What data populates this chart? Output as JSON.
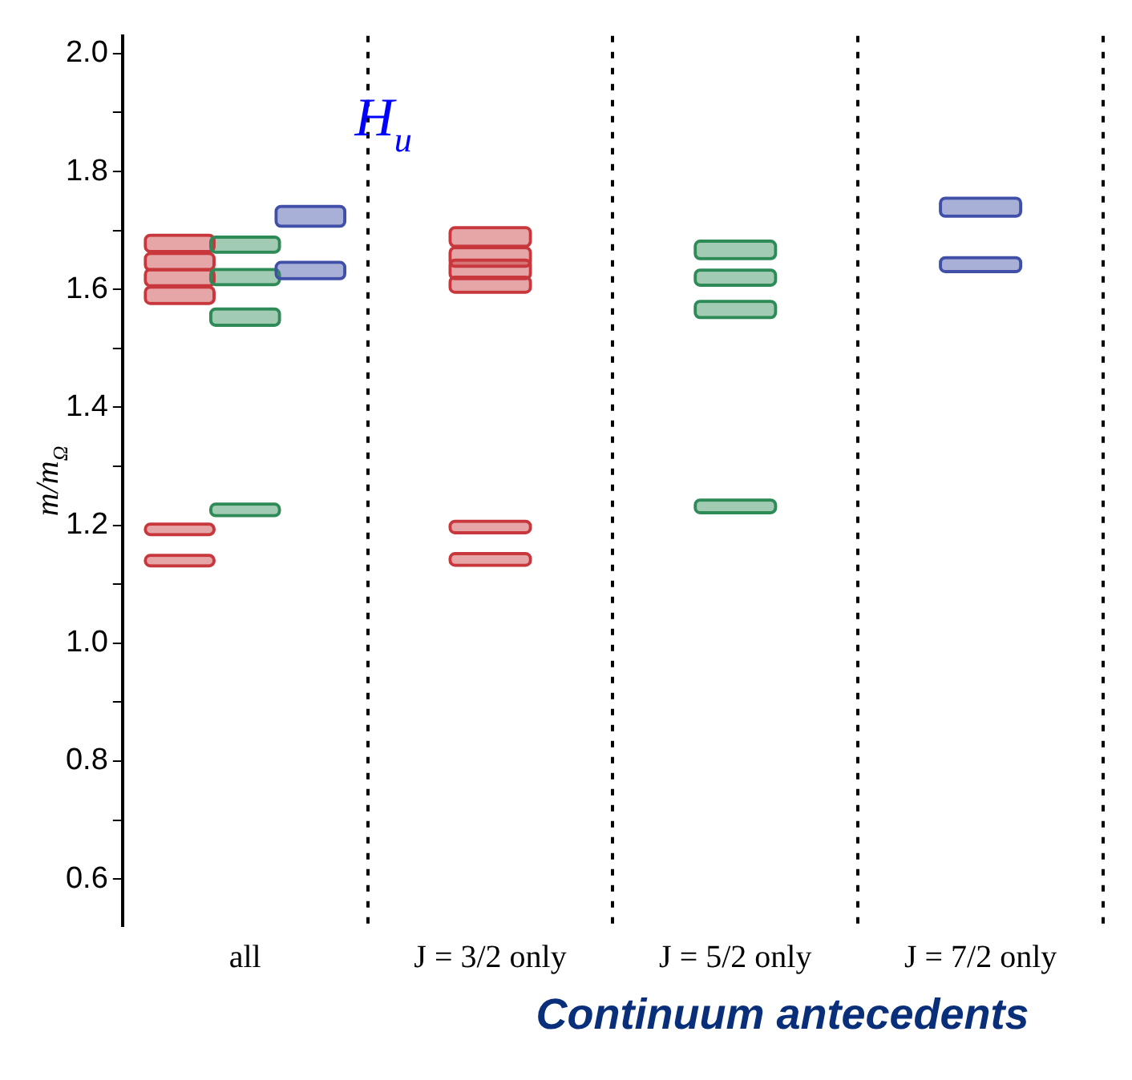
{
  "chart_data": {
    "type": "bar",
    "xlabel": "Continuum antecedents",
    "ylabel": "m/m$_{Ω}$",
    "annotations": [
      "H$_{u}$"
    ],
    "categories": [
      "all",
      "J = 3/2 only",
      "J = 5/2 only",
      "J = 7/2 only"
    ],
    "ylim": [
      0.52,
      2.03
    ],
    "yticks": [
      {
        "value": 0.6,
        "label": "0.6"
      },
      {
        "value": 0.7,
        "label": null
      },
      {
        "value": 0.8,
        "label": "0.8"
      },
      {
        "value": 0.9,
        "label": null
      },
      {
        "value": 1,
        "label": "1.0"
      },
      {
        "value": 1.1,
        "label": null
      },
      {
        "value": 1.2,
        "label": "1.2"
      },
      {
        "value": 1.3,
        "label": null
      },
      {
        "value": 1.4,
        "label": "1.4"
      },
      {
        "value": 1.5,
        "label": null
      },
      {
        "value": 1.6,
        "label": "1.6"
      },
      {
        "value": 1.7,
        "label": null
      },
      {
        "value": 1.8,
        "label": "1.8"
      },
      {
        "value": 1.9,
        "label": null
      },
      {
        "value": 2,
        "label": "2.0"
      }
    ],
    "grid": "x",
    "legend": false,
    "series": [
      {
        "color": "#c8373c",
        "base": [
          1.667,
          1.676,
          null,
          null
        ],
        "values": [
          0.022,
          0.026,
          null,
          null
        ]
      },
      {
        "color": "#c8373c",
        "base": [
          1.636,
          1.642,
          null,
          null
        ],
        "values": [
          0.022,
          0.026,
          null,
          null
        ]
      },
      {
        "color": "#c8373c",
        "base": [
          1.609,
          1.621,
          null,
          null
        ],
        "values": [
          0.022,
          0.026,
          null,
          null
        ]
      },
      {
        "color": "#c8373c",
        "base": [
          1.579,
          1.598,
          null,
          null
        ],
        "values": [
          0.022,
          0.02,
          null,
          null
        ]
      },
      {
        "color": "#c8373c",
        "base": [
          1.187,
          1.19,
          null,
          null
        ],
        "values": [
          0.012,
          0.014,
          null,
          null
        ]
      },
      {
        "color": "#c8373c",
        "base": [
          1.134,
          1.135,
          null,
          null
        ],
        "values": [
          0.012,
          0.014,
          null,
          null
        ]
      },
      {
        "color": "#2e8b57",
        "base": [
          1.666,
          null,
          1.655,
          null
        ],
        "values": [
          0.02,
          null,
          0.024,
          null
        ]
      },
      {
        "color": "#2e8b57",
        "base": [
          1.611,
          null,
          1.61,
          null
        ],
        "values": [
          0.02,
          null,
          0.02,
          null
        ]
      },
      {
        "color": "#2e8b57",
        "base": [
          1.542,
          null,
          1.555,
          null
        ],
        "values": [
          0.022,
          null,
          0.022,
          null
        ]
      },
      {
        "color": "#2e8b57",
        "base": [
          1.219,
          null,
          1.224,
          null
        ],
        "values": [
          0.014,
          null,
          0.016,
          null
        ]
      },
      {
        "color": "#4050a8",
        "base": [
          1.71,
          null,
          null,
          1.727
        ],
        "values": [
          0.028,
          null,
          null,
          0.025
        ]
      },
      {
        "color": "#4050a8",
        "base": [
          1.621,
          null,
          null,
          1.633
        ],
        "values": [
          0.022,
          null,
          null,
          0.018
        ]
      }
    ]
  }
}
